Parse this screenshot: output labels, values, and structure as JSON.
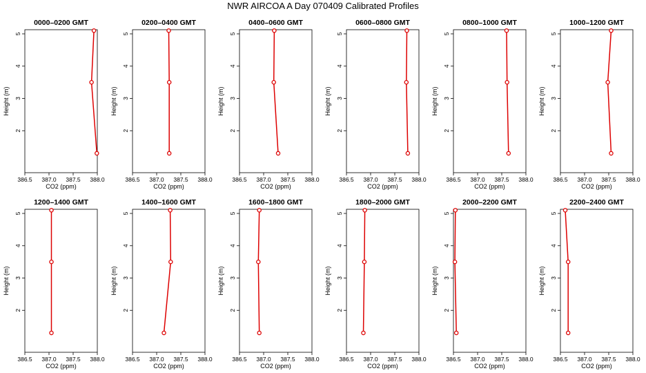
{
  "title": "NWR AIRCOA A  Day 070409  Calibrated Profiles",
  "style": {
    "line_color": "#dd0000",
    "axis_color": "#000000"
  },
  "chart_data": [
    {
      "type": "line",
      "title": "0000–0200 GMT",
      "xlabel": "CO2 (ppm)",
      "ylabel": "Height (m)",
      "xlim": [
        386.5,
        388.0
      ],
      "ylim": [
        1,
        5
      ],
      "xticks": [
        "386.5",
        "387.0",
        "387.5",
        "388.0"
      ],
      "yticks": [
        "2",
        "3",
        "4",
        "5"
      ],
      "x": [
        387.93,
        387.88,
        387.99
      ],
      "y": [
        5.1,
        3.5,
        1.3
      ]
    },
    {
      "type": "line",
      "title": "0200–0400 GMT",
      "xlabel": "CO2 (ppm)",
      "ylabel": "Height (m)",
      "xlim": [
        386.5,
        388.0
      ],
      "ylim": [
        1,
        5
      ],
      "xticks": [
        "386.5",
        "387.0",
        "387.5",
        "388.0"
      ],
      "yticks": [
        "2",
        "3",
        "4",
        "5"
      ],
      "x": [
        387.25,
        387.26,
        387.26
      ],
      "y": [
        5.1,
        3.5,
        1.3
      ]
    },
    {
      "type": "line",
      "title": "0400–0600 GMT",
      "xlabel": "CO2 (ppm)",
      "ylabel": "Height (m)",
      "xlim": [
        386.5,
        388.0
      ],
      "ylim": [
        1,
        5
      ],
      "xticks": [
        "386.5",
        "387.0",
        "387.5",
        "388.0"
      ],
      "yticks": [
        "2",
        "3",
        "4",
        "5"
      ],
      "x": [
        387.22,
        387.21,
        387.3
      ],
      "y": [
        5.1,
        3.5,
        1.3
      ]
    },
    {
      "type": "line",
      "title": "0600–0800 GMT",
      "xlabel": "CO2 (ppm)",
      "ylabel": "Height (m)",
      "xlim": [
        386.5,
        388.0
      ],
      "ylim": [
        1,
        5
      ],
      "xticks": [
        "386.5",
        "387.0",
        "387.5",
        "388.0"
      ],
      "yticks": [
        "2",
        "3",
        "4",
        "5"
      ],
      "x": [
        387.75,
        387.74,
        387.77
      ],
      "y": [
        5.1,
        3.5,
        1.3
      ]
    },
    {
      "type": "line",
      "title": "0800–1000 GMT",
      "xlabel": "CO2 (ppm)",
      "ylabel": "Height (m)",
      "xlim": [
        386.5,
        388.0
      ],
      "ylim": [
        1,
        5
      ],
      "xticks": [
        "386.5",
        "387.0",
        "387.5",
        "388.0"
      ],
      "yticks": [
        "2",
        "3",
        "4",
        "5"
      ],
      "x": [
        387.6,
        387.61,
        387.64
      ],
      "y": [
        5.1,
        3.5,
        1.3
      ]
    },
    {
      "type": "line",
      "title": "1000–1200 GMT",
      "xlabel": "CO2 (ppm)",
      "ylabel": "Height (m)",
      "xlim": [
        386.5,
        388.0
      ],
      "ylim": [
        1,
        5
      ],
      "xticks": [
        "386.5",
        "387.0",
        "387.5",
        "388.0"
      ],
      "yticks": [
        "2",
        "3",
        "4",
        "5"
      ],
      "x": [
        387.55,
        387.48,
        387.55
      ],
      "y": [
        5.1,
        3.5,
        1.3
      ]
    },
    {
      "type": "line",
      "title": "1200–1400 GMT",
      "xlabel": "CO2 (ppm)",
      "ylabel": "Height (m)",
      "xlim": [
        386.5,
        388.0
      ],
      "ylim": [
        1,
        5
      ],
      "xticks": [
        "386.5",
        "387.0",
        "387.5",
        "388.0"
      ],
      "yticks": [
        "2",
        "3",
        "4",
        "5"
      ],
      "x": [
        387.05,
        387.05,
        387.05
      ],
      "y": [
        5.1,
        3.5,
        1.3
      ]
    },
    {
      "type": "line",
      "title": "1400–1600 GMT",
      "xlabel": "CO2 (ppm)",
      "ylabel": "Height (m)",
      "xlim": [
        386.5,
        388.0
      ],
      "ylim": [
        1,
        5
      ],
      "xticks": [
        "386.5",
        "387.0",
        "387.5",
        "388.0"
      ],
      "yticks": [
        "2",
        "3",
        "4",
        "5"
      ],
      "x": [
        387.28,
        387.29,
        387.15
      ],
      "y": [
        5.1,
        3.5,
        1.3
      ]
    },
    {
      "type": "line",
      "title": "1600–1800 GMT",
      "xlabel": "CO2 (ppm)",
      "ylabel": "Height (m)",
      "xlim": [
        386.5,
        388.0
      ],
      "ylim": [
        1,
        5
      ],
      "xticks": [
        "386.5",
        "387.0",
        "387.5",
        "388.0"
      ],
      "yticks": [
        "2",
        "3",
        "4",
        "5"
      ],
      "x": [
        386.91,
        386.89,
        386.91
      ],
      "y": [
        5.1,
        3.5,
        1.3
      ]
    },
    {
      "type": "line",
      "title": "1800–2000 GMT",
      "xlabel": "CO2 (ppm)",
      "ylabel": "Height (m)",
      "xlim": [
        386.5,
        388.0
      ],
      "ylim": [
        1,
        5
      ],
      "xticks": [
        "386.5",
        "387.0",
        "387.5",
        "388.0"
      ],
      "yticks": [
        "2",
        "3",
        "4",
        "5"
      ],
      "x": [
        386.88,
        386.87,
        386.85
      ],
      "y": [
        5.1,
        3.5,
        1.3
      ]
    },
    {
      "type": "line",
      "title": "2000–2200 GMT",
      "xlabel": "CO2 (ppm)",
      "ylabel": "Height (m)",
      "xlim": [
        386.5,
        388.0
      ],
      "ylim": [
        1,
        5
      ],
      "xticks": [
        "386.5",
        "387.0",
        "387.5",
        "388.0"
      ],
      "yticks": [
        "2",
        "3",
        "4",
        "5"
      ],
      "x": [
        386.54,
        386.53,
        386.56
      ],
      "y": [
        5.1,
        3.5,
        1.3
      ]
    },
    {
      "type": "line",
      "title": "2200–2400 GMT",
      "xlabel": "CO2 (ppm)",
      "ylabel": "Height (m)",
      "xlim": [
        386.5,
        388.0
      ],
      "ylim": [
        1,
        5
      ],
      "xticks": [
        "386.5",
        "387.0",
        "387.5",
        "388.0"
      ],
      "yticks": [
        "2",
        "3",
        "4",
        "5"
      ],
      "x": [
        386.6,
        386.66,
        386.66
      ],
      "y": [
        5.1,
        3.5,
        1.3
      ]
    }
  ]
}
